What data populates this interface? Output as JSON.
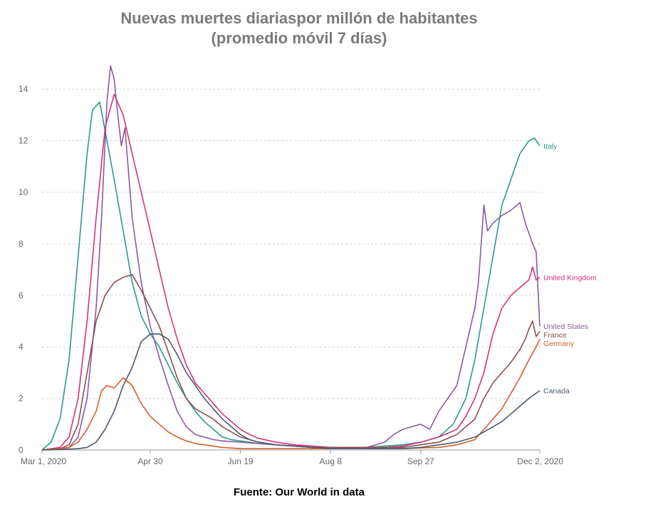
{
  "chart_data": {
    "type": "line",
    "title_line1": "Nuevas muertes diariaspor millón de habitantes",
    "title_line2": "(promedio móvil 7 días)",
    "source": "Fuente: Our World in data",
    "xlabel": "",
    "ylabel": "",
    "x_ticks": [
      "Mar 1, 2020",
      "Apr 30",
      "Jun 19",
      "Aug 8",
      "Sep 27",
      "Dec 2, 2020"
    ],
    "x_tick_days": [
      0,
      60,
      110,
      160,
      210,
      276
    ],
    "xlim": [
      0,
      276
    ],
    "ylim": [
      0,
      15
    ],
    "y_ticks": [
      0,
      2,
      4,
      6,
      8,
      10,
      12,
      14
    ],
    "grid": "horizontal dashed",
    "x_unit": "days since Mar 1, 2020",
    "series": [
      {
        "name": "Italy",
        "color": "#2a9a8e",
        "points": [
          [
            0,
            0
          ],
          [
            5,
            0.3
          ],
          [
            10,
            1.2
          ],
          [
            15,
            3.5
          ],
          [
            20,
            7.5
          ],
          [
            25,
            11.5
          ],
          [
            28,
            13.2
          ],
          [
            32,
            13.5
          ],
          [
            36,
            12.0
          ],
          [
            40,
            10.5
          ],
          [
            45,
            8.5
          ],
          [
            50,
            6.5
          ],
          [
            55,
            5.2
          ],
          [
            60,
            4.5
          ],
          [
            65,
            4.0
          ],
          [
            70,
            3.3
          ],
          [
            75,
            2.6
          ],
          [
            80,
            2.0
          ],
          [
            85,
            1.5
          ],
          [
            90,
            1.1
          ],
          [
            95,
            0.8
          ],
          [
            100,
            0.5
          ],
          [
            105,
            0.4
          ],
          [
            110,
            0.35
          ],
          [
            115,
            0.3
          ],
          [
            120,
            0.25
          ],
          [
            130,
            0.2
          ],
          [
            140,
            0.15
          ],
          [
            150,
            0.1
          ],
          [
            160,
            0.1
          ],
          [
            170,
            0.1
          ],
          [
            180,
            0.1
          ],
          [
            190,
            0.15
          ],
          [
            200,
            0.2
          ],
          [
            210,
            0.3
          ],
          [
            220,
            0.5
          ],
          [
            228,
            1.0
          ],
          [
            235,
            2.0
          ],
          [
            240,
            3.5
          ],
          [
            245,
            5.5
          ],
          [
            250,
            7.5
          ],
          [
            255,
            9.5
          ],
          [
            260,
            10.5
          ],
          [
            265,
            11.5
          ],
          [
            270,
            12.0
          ],
          [
            273,
            12.1
          ],
          [
            276,
            11.8
          ]
        ]
      },
      {
        "name": "United Kingdom",
        "color": "#d6317a",
        "points": [
          [
            0,
            0
          ],
          [
            10,
            0.1
          ],
          [
            15,
            0.5
          ],
          [
            20,
            2.0
          ],
          [
            25,
            5.0
          ],
          [
            30,
            9.0
          ],
          [
            35,
            12.5
          ],
          [
            40,
            13.8
          ],
          [
            45,
            13.0
          ],
          [
            50,
            11.5
          ],
          [
            55,
            10.0
          ],
          [
            60,
            8.5
          ],
          [
            65,
            7.0
          ],
          [
            70,
            5.5
          ],
          [
            75,
            4.3
          ],
          [
            80,
            3.3
          ],
          [
            85,
            2.6
          ],
          [
            90,
            2.2
          ],
          [
            95,
            1.8
          ],
          [
            100,
            1.4
          ],
          [
            105,
            1.1
          ],
          [
            110,
            0.8
          ],
          [
            115,
            0.6
          ],
          [
            120,
            0.45
          ],
          [
            130,
            0.3
          ],
          [
            140,
            0.2
          ],
          [
            150,
            0.15
          ],
          [
            160,
            0.1
          ],
          [
            170,
            0.1
          ],
          [
            180,
            0.1
          ],
          [
            190,
            0.1
          ],
          [
            200,
            0.15
          ],
          [
            210,
            0.3
          ],
          [
            220,
            0.5
          ],
          [
            230,
            0.8
          ],
          [
            235,
            1.3
          ],
          [
            240,
            2.0
          ],
          [
            245,
            3.0
          ],
          [
            250,
            4.5
          ],
          [
            255,
            5.5
          ],
          [
            260,
            6.0
          ],
          [
            265,
            6.3
          ],
          [
            270,
            6.6
          ],
          [
            272,
            7.1
          ],
          [
            274,
            6.6
          ],
          [
            276,
            6.7
          ]
        ]
      },
      {
        "name": "United States",
        "color": "#8a5a9f",
        "points": [
          [
            0,
            0
          ],
          [
            10,
            0.05
          ],
          [
            15,
            0.1
          ],
          [
            20,
            0.5
          ],
          [
            25,
            2.0
          ],
          [
            30,
            5.5
          ],
          [
            33,
            9.0
          ],
          [
            36,
            13.5
          ],
          [
            38,
            14.9
          ],
          [
            40,
            14.4
          ],
          [
            42,
            13.0
          ],
          [
            44,
            11.8
          ],
          [
            46,
            12.5
          ],
          [
            50,
            9.0
          ],
          [
            55,
            6.5
          ],
          [
            60,
            4.8
          ],
          [
            65,
            3.6
          ],
          [
            70,
            2.5
          ],
          [
            75,
            1.5
          ],
          [
            80,
            0.9
          ],
          [
            85,
            0.6
          ],
          [
            90,
            0.5
          ],
          [
            95,
            0.4
          ],
          [
            100,
            0.35
          ],
          [
            110,
            0.3
          ],
          [
            120,
            0.25
          ],
          [
            130,
            0.2
          ],
          [
            140,
            0.15
          ],
          [
            150,
            0.1
          ],
          [
            160,
            0.05
          ],
          [
            170,
            0.05
          ],
          [
            180,
            0.1
          ],
          [
            190,
            0.3
          ],
          [
            195,
            0.6
          ],
          [
            200,
            0.8
          ],
          [
            205,
            0.9
          ],
          [
            210,
            1.0
          ],
          [
            215,
            0.8
          ],
          [
            220,
            1.5
          ],
          [
            225,
            2.0
          ],
          [
            230,
            2.5
          ],
          [
            235,
            4.0
          ],
          [
            240,
            5.5
          ],
          [
            242,
            6.5
          ],
          [
            245,
            9.5
          ],
          [
            247,
            8.5
          ],
          [
            250,
            8.8
          ],
          [
            255,
            9.1
          ],
          [
            260,
            9.3
          ],
          [
            265,
            9.6
          ],
          [
            268,
            8.8
          ],
          [
            272,
            8.0
          ],
          [
            274,
            7.7
          ],
          [
            276,
            4.8
          ]
        ]
      },
      {
        "name": "France",
        "color": "#8a5050",
        "points": [
          [
            0,
            0
          ],
          [
            10,
            0.05
          ],
          [
            15,
            0.2
          ],
          [
            20,
            1.0
          ],
          [
            25,
            3.0
          ],
          [
            30,
            5.0
          ],
          [
            35,
            6.0
          ],
          [
            40,
            6.5
          ],
          [
            45,
            6.7
          ],
          [
            50,
            6.8
          ],
          [
            55,
            6.2
          ],
          [
            60,
            5.5
          ],
          [
            65,
            4.8
          ],
          [
            70,
            3.8
          ],
          [
            75,
            2.8
          ],
          [
            80,
            2.0
          ],
          [
            85,
            1.6
          ],
          [
            90,
            1.4
          ],
          [
            95,
            1.2
          ],
          [
            100,
            0.9
          ],
          [
            105,
            0.7
          ],
          [
            110,
            0.5
          ],
          [
            115,
            0.4
          ],
          [
            120,
            0.3
          ],
          [
            130,
            0.2
          ],
          [
            140,
            0.15
          ],
          [
            150,
            0.1
          ],
          [
            160,
            0.1
          ],
          [
            170,
            0.1
          ],
          [
            180,
            0.1
          ],
          [
            190,
            0.1
          ],
          [
            200,
            0.1
          ],
          [
            210,
            0.2
          ],
          [
            220,
            0.3
          ],
          [
            230,
            0.6
          ],
          [
            240,
            1.2
          ],
          [
            245,
            2.0
          ],
          [
            250,
            2.6
          ],
          [
            255,
            3.0
          ],
          [
            260,
            3.4
          ],
          [
            265,
            3.9
          ],
          [
            268,
            4.3
          ],
          [
            270,
            4.7
          ],
          [
            272,
            5.0
          ],
          [
            274,
            4.4
          ],
          [
            276,
            4.6
          ]
        ]
      },
      {
        "name": "Germany",
        "color": "#d0602a",
        "points": [
          [
            0,
            0
          ],
          [
            10,
            0.05
          ],
          [
            15,
            0.1
          ],
          [
            20,
            0.3
          ],
          [
            25,
            0.8
          ],
          [
            30,
            1.5
          ],
          [
            33,
            2.3
          ],
          [
            36,
            2.5
          ],
          [
            40,
            2.4
          ],
          [
            45,
            2.8
          ],
          [
            50,
            2.5
          ],
          [
            55,
            1.8
          ],
          [
            60,
            1.3
          ],
          [
            65,
            1.0
          ],
          [
            70,
            0.7
          ],
          [
            75,
            0.5
          ],
          [
            80,
            0.35
          ],
          [
            85,
            0.25
          ],
          [
            90,
            0.2
          ],
          [
            100,
            0.1
          ],
          [
            110,
            0.05
          ],
          [
            120,
            0.05
          ],
          [
            140,
            0.05
          ],
          [
            160,
            0.05
          ],
          [
            180,
            0.05
          ],
          [
            200,
            0.05
          ],
          [
            210,
            0.08
          ],
          [
            220,
            0.1
          ],
          [
            230,
            0.2
          ],
          [
            240,
            0.4
          ],
          [
            245,
            0.8
          ],
          [
            250,
            1.2
          ],
          [
            255,
            1.6
          ],
          [
            260,
            2.2
          ],
          [
            265,
            2.8
          ],
          [
            270,
            3.5
          ],
          [
            274,
            4.0
          ],
          [
            276,
            4.3
          ]
        ]
      },
      {
        "name": "Canada",
        "color": "#4a5a6e",
        "points": [
          [
            0,
            0
          ],
          [
            10,
            0.02
          ],
          [
            20,
            0.05
          ],
          [
            25,
            0.1
          ],
          [
            30,
            0.3
          ],
          [
            35,
            0.8
          ],
          [
            40,
            1.5
          ],
          [
            45,
            2.5
          ],
          [
            50,
            3.2
          ],
          [
            55,
            4.2
          ],
          [
            60,
            4.5
          ],
          [
            65,
            4.5
          ],
          [
            70,
            4.3
          ],
          [
            75,
            3.7
          ],
          [
            80,
            3.0
          ],
          [
            85,
            2.5
          ],
          [
            90,
            2.0
          ],
          [
            95,
            1.6
          ],
          [
            100,
            1.2
          ],
          [
            105,
            0.9
          ],
          [
            110,
            0.6
          ],
          [
            115,
            0.4
          ],
          [
            120,
            0.3
          ],
          [
            130,
            0.2
          ],
          [
            140,
            0.15
          ],
          [
            150,
            0.1
          ],
          [
            160,
            0.05
          ],
          [
            170,
            0.05
          ],
          [
            180,
            0.05
          ],
          [
            190,
            0.05
          ],
          [
            200,
            0.05
          ],
          [
            210,
            0.1
          ],
          [
            220,
            0.2
          ],
          [
            230,
            0.3
          ],
          [
            240,
            0.5
          ],
          [
            245,
            0.7
          ],
          [
            250,
            0.9
          ],
          [
            255,
            1.1
          ],
          [
            260,
            1.4
          ],
          [
            265,
            1.7
          ],
          [
            270,
            2.0
          ],
          [
            274,
            2.2
          ],
          [
            276,
            2.3
          ]
        ]
      }
    ]
  }
}
